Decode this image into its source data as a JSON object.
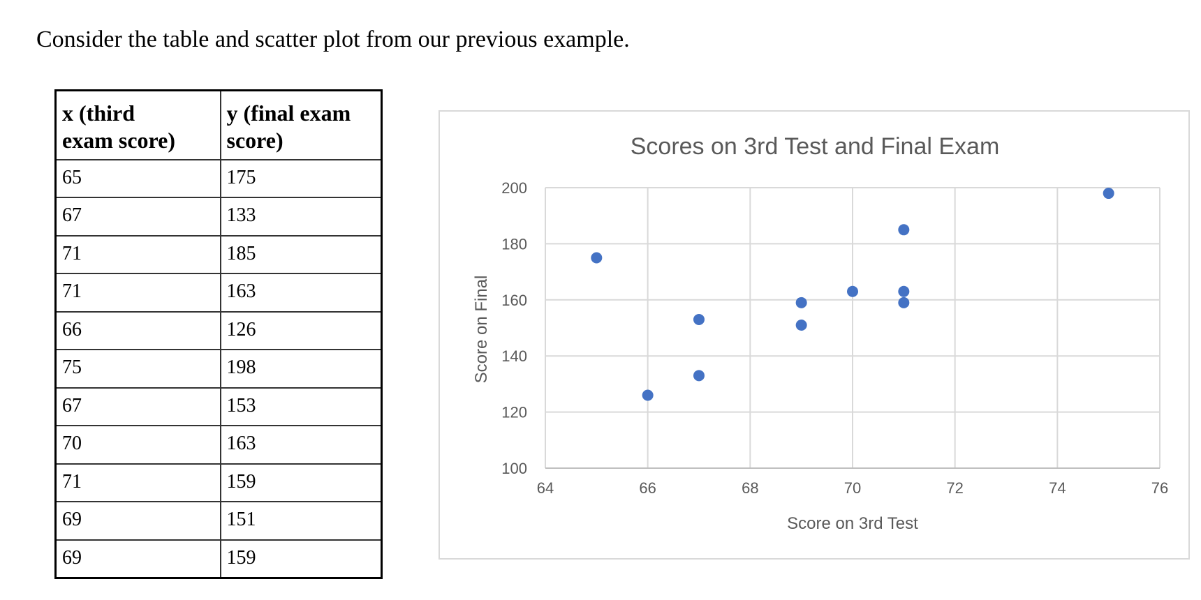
{
  "intro_text": "Consider the table and scatter plot from our previous example.",
  "table": {
    "headers": {
      "x_line1": "x (third",
      "x_line2": "exam score)",
      "y_line1": "y (final exam",
      "y_line2": "score)"
    },
    "rows": [
      {
        "x": "65",
        "y": "175"
      },
      {
        "x": "67",
        "y": "133"
      },
      {
        "x": "71",
        "y": "185"
      },
      {
        "x": "71",
        "y": "163"
      },
      {
        "x": "66",
        "y": "126"
      },
      {
        "x": "75",
        "y": "198"
      },
      {
        "x": "67",
        "y": "153"
      },
      {
        "x": "70",
        "y": "163"
      },
      {
        "x": "71",
        "y": "159"
      },
      {
        "x": "69",
        "y": "151"
      },
      {
        "x": "69",
        "y": "159"
      }
    ]
  },
  "chart_data": {
    "type": "scatter",
    "title": "Scores on 3rd Test and Final Exam",
    "xlabel": "Score on 3rd Test",
    "ylabel": "Score on Final",
    "xlim": [
      64,
      76
    ],
    "ylim": [
      100,
      200
    ],
    "xticks": [
      64,
      66,
      68,
      70,
      72,
      74,
      76
    ],
    "yticks": [
      100,
      120,
      140,
      160,
      180,
      200
    ],
    "grid": true,
    "legend": "none",
    "marker_color": "#4472C4",
    "points": [
      {
        "x": 65,
        "y": 175
      },
      {
        "x": 67,
        "y": 133
      },
      {
        "x": 71,
        "y": 185
      },
      {
        "x": 71,
        "y": 163
      },
      {
        "x": 66,
        "y": 126
      },
      {
        "x": 75,
        "y": 198
      },
      {
        "x": 67,
        "y": 153
      },
      {
        "x": 70,
        "y": 163
      },
      {
        "x": 71,
        "y": 159
      },
      {
        "x": 69,
        "y": 151
      },
      {
        "x": 69,
        "y": 159
      }
    ]
  }
}
